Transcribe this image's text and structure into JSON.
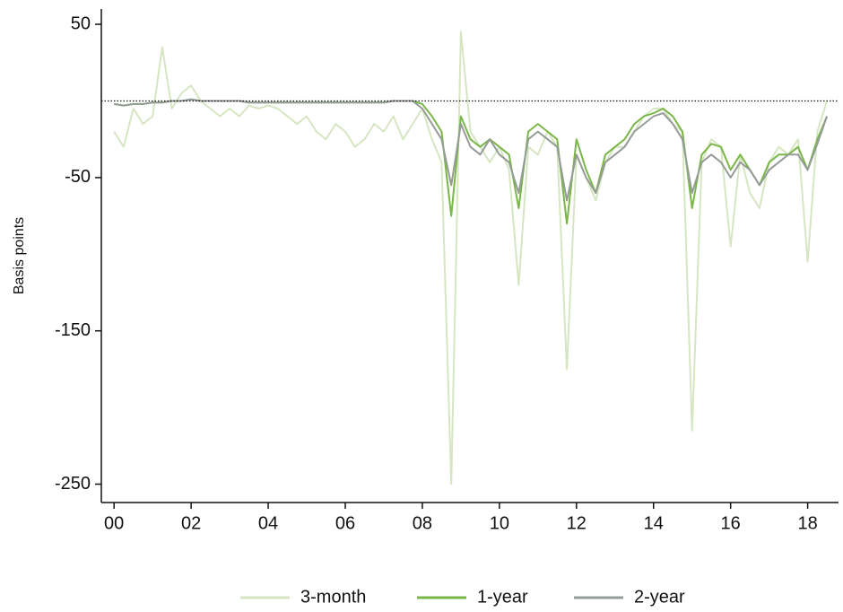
{
  "chart_data": {
    "type": "line",
    "y_label": "Basis points",
    "x": [
      2000,
      2000.25,
      2000.5,
      2000.75,
      2001,
      2001.25,
      2001.5,
      2001.75,
      2002,
      2002.25,
      2002.5,
      2002.75,
      2003,
      2003.25,
      2003.5,
      2003.75,
      2004,
      2004.25,
      2004.5,
      2004.75,
      2005,
      2005.25,
      2005.5,
      2005.75,
      2006,
      2006.25,
      2006.5,
      2006.75,
      2007,
      2007.25,
      2007.5,
      2007.75,
      2008,
      2008.25,
      2008.5,
      2008.75,
      2009,
      2009.25,
      2009.5,
      2009.75,
      2010,
      2010.25,
      2010.5,
      2010.75,
      2011,
      2011.25,
      2011.5,
      2011.75,
      2012,
      2012.25,
      2012.5,
      2012.75,
      2013,
      2013.25,
      2013.5,
      2013.75,
      2014,
      2014.25,
      2014.5,
      2014.75,
      2015,
      2015.25,
      2015.5,
      2015.75,
      2016,
      2016.25,
      2016.5,
      2016.75,
      2017,
      2017.25,
      2017.5,
      2017.75,
      2018,
      2018.25,
      2018.5
    ],
    "series": [
      {
        "name": "3-month",
        "color": "#d6e6c3",
        "values": [
          -20,
          -30,
          -5,
          -15,
          -10,
          35,
          -5,
          5,
          10,
          0,
          -5,
          -10,
          -5,
          -10,
          -3,
          -5,
          -3,
          -5,
          -10,
          -15,
          -10,
          -20,
          -25,
          -15,
          -20,
          -30,
          -25,
          -15,
          -20,
          -10,
          -25,
          -15,
          -5,
          -25,
          -40,
          -250,
          45,
          -20,
          -30,
          -40,
          -30,
          -45,
          -120,
          -30,
          -35,
          -20,
          -30,
          -175,
          -35,
          -50,
          -65,
          -40,
          -30,
          -30,
          -20,
          -10,
          -5,
          -5,
          -15,
          -20,
          -215,
          -40,
          -25,
          -30,
          -95,
          -35,
          -60,
          -70,
          -40,
          -30,
          -35,
          -25,
          -105,
          -20,
          0
        ]
      },
      {
        "name": "1-year",
        "color": "#7ab648",
        "values": [
          -2,
          -3,
          -2,
          -2,
          -1,
          -1,
          0,
          0,
          1,
          0,
          0,
          0,
          0,
          0,
          -1,
          -1,
          -1,
          -1,
          -1,
          -1,
          -1,
          -1,
          -1,
          -1,
          -1,
          -1,
          -1,
          -1,
          -1,
          0,
          0,
          0,
          -2,
          -10,
          -20,
          -75,
          -10,
          -25,
          -30,
          -25,
          -30,
          -35,
          -70,
          -20,
          -15,
          -20,
          -25,
          -80,
          -25,
          -45,
          -60,
          -35,
          -30,
          -25,
          -15,
          -10,
          -8,
          -5,
          -10,
          -20,
          -70,
          -35,
          -28,
          -30,
          -45,
          -35,
          -45,
          -55,
          -40,
          -35,
          -35,
          -30,
          -45,
          -25,
          -10
        ]
      },
      {
        "name": "2-year",
        "color": "#959c98",
        "values": [
          -2,
          -3,
          -2,
          -2,
          -1,
          -1,
          0,
          0,
          1,
          0,
          0,
          0,
          0,
          0,
          -1,
          -1,
          -1,
          -1,
          -1,
          -1,
          -1,
          -1,
          -1,
          -1,
          -1,
          -1,
          -1,
          -1,
          -1,
          0,
          0,
          0,
          -5,
          -15,
          -25,
          -55,
          -15,
          -30,
          -35,
          -25,
          -35,
          -40,
          -60,
          -25,
          -20,
          -25,
          -30,
          -65,
          -35,
          -50,
          -60,
          -40,
          -35,
          -30,
          -20,
          -15,
          -10,
          -8,
          -15,
          -25,
          -60,
          -40,
          -35,
          -40,
          -50,
          -40,
          -45,
          -55,
          -45,
          -40,
          -35,
          -35,
          -45,
          -28,
          -10
        ]
      }
    ],
    "xlim": [
      1999.67,
      2018.8
    ],
    "xticks": [
      {
        "value": 2000,
        "label": "00"
      },
      {
        "value": 2002,
        "label": "02"
      },
      {
        "value": 2004,
        "label": "04"
      },
      {
        "value": 2006,
        "label": "06"
      },
      {
        "value": 2008,
        "label": "08"
      },
      {
        "value": 2010,
        "label": "10"
      },
      {
        "value": 2012,
        "label": "12"
      },
      {
        "value": 2014,
        "label": "14"
      },
      {
        "value": 2016,
        "label": "16"
      },
      {
        "value": 2018,
        "label": "18"
      }
    ],
    "ylim": [
      -262,
      60
    ],
    "yticks": [
      50,
      -50,
      -150,
      -250
    ],
    "hline": 0,
    "grid": false,
    "legend": "bottom"
  }
}
